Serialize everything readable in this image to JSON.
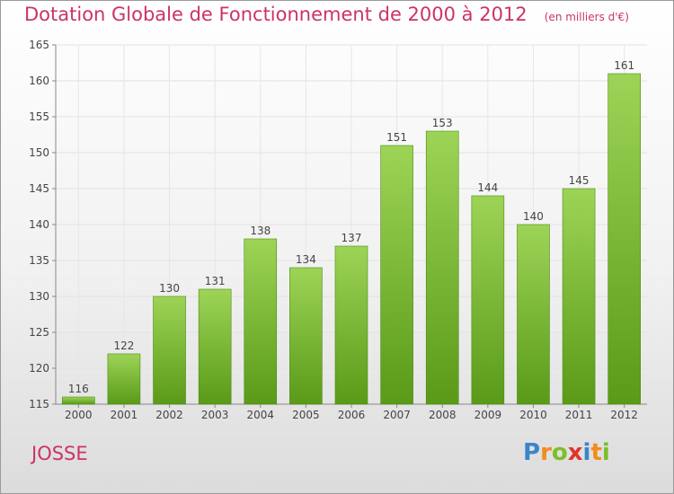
{
  "chart_data": {
    "type": "bar",
    "title": "Dotation Globale de Fonctionnement de 2000 à 2012",
    "subtitle": "(en milliers d'€)",
    "categories": [
      "2000",
      "2001",
      "2002",
      "2003",
      "2004",
      "2005",
      "2006",
      "2007",
      "2008",
      "2009",
      "2010",
      "2011",
      "2012"
    ],
    "values": [
      116,
      122,
      130,
      131,
      138,
      134,
      137,
      151,
      153,
      144,
      140,
      145,
      161
    ],
    "ylim": [
      115,
      165
    ],
    "yticks": [
      115,
      120,
      125,
      130,
      135,
      140,
      145,
      150,
      155,
      160,
      165
    ],
    "grid": true,
    "colors": {
      "bar_light": "#9dd457",
      "bar_dark": "#5a9a18",
      "bar_edge": "#4f8a12",
      "title": "#cc3366"
    }
  },
  "commune_name": "JOSSE",
  "logo": {
    "text": "Proxiti",
    "letters": [
      {
        "ch": "P",
        "color": "#3a86c8"
      },
      {
        "ch": "r",
        "color": "#f28c1a"
      },
      {
        "ch": "o",
        "color": "#7bbf2a"
      },
      {
        "ch": "x",
        "color": "#e0342b"
      },
      {
        "ch": "i",
        "color": "#3a86c8"
      },
      {
        "ch": "t",
        "color": "#f28c1a"
      },
      {
        "ch": "i",
        "color": "#7bbf2a"
      }
    ]
  }
}
